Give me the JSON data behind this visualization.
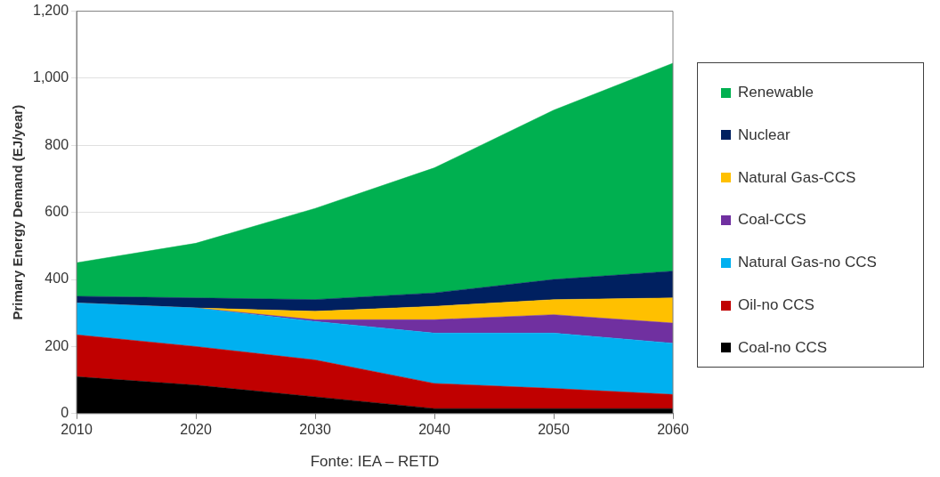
{
  "chart_data": {
    "type": "area",
    "stacked": true,
    "xlabel": null,
    "ylabel": "Primary Energy Demand (EJ/year)",
    "annotations": [
      "Fonte: IEA – RETD"
    ],
    "x": [
      2010,
      2020,
      2030,
      2040,
      2050,
      2060
    ],
    "xlim": [
      2010,
      2060
    ],
    "xticks": [
      2010,
      2020,
      2030,
      2040,
      2050,
      2060
    ],
    "ylim": [
      0,
      1200
    ],
    "yticks": [
      0,
      {
        "value": 200,
        "label": "200"
      },
      {
        "value": 400,
        "label": "400"
      },
      {
        "value": 600,
        "label": "600"
      },
      {
        "value": 800,
        "label": "800"
      },
      {
        "value": 1000,
        "label": "1,000"
      },
      {
        "value": 1200,
        "label": "1,200"
      }
    ],
    "grid": "y",
    "legend": "right",
    "series": [
      {
        "name": "Coal-no CCS",
        "color": "#000000",
        "values": [
          110,
          85,
          50,
          15,
          15,
          15
        ]
      },
      {
        "name": "Oil-no CCS",
        "color": "#c00000",
        "values": [
          125,
          115,
          110,
          75,
          60,
          42
        ]
      },
      {
        "name": "Natural Gas-no CCS",
        "color": "#00b0f0",
        "values": [
          95,
          115,
          115,
          150,
          165,
          153
        ]
      },
      {
        "name": "Coal-CCS",
        "color": "#7030a0",
        "values": [
          0,
          0,
          5,
          40,
          55,
          60
        ]
      },
      {
        "name": "Natural Gas-CCS",
        "color": "#ffc000",
        "values": [
          0,
          0,
          25,
          40,
          45,
          75
        ]
      },
      {
        "name": "Nuclear",
        "color": "#002060",
        "values": [
          20,
          30,
          35,
          40,
          60,
          80
        ]
      },
      {
        "name": "Renewable",
        "color": "#00b050",
        "values": [
          100,
          163,
          272,
          373,
          505,
          620
        ]
      }
    ]
  }
}
